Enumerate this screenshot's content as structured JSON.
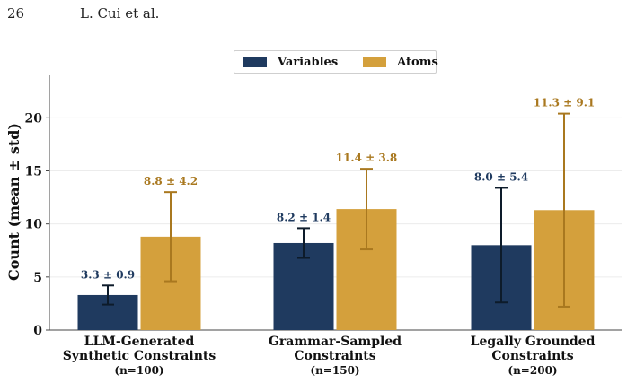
{
  "page": {
    "number": "26",
    "running_head": "L. Cui et al."
  },
  "chart_data": {
    "type": "bar",
    "categories": [
      {
        "lines": [
          "LLM-Generated",
          "Synthetic Constraints"
        ],
        "n": "(n=100)"
      },
      {
        "lines": [
          "Grammar-Sampled",
          "Constraints"
        ],
        "n": "(n=150)"
      },
      {
        "lines": [
          "Legally Grounded",
          "Constraints"
        ],
        "n": "(n=200)"
      }
    ],
    "series": [
      {
        "name": "Variables",
        "color": "#1f3a5f",
        "label_color": "#1f3a5f",
        "values": [
          3.3,
          8.2,
          8.0
        ],
        "std": [
          0.9,
          1.4,
          5.4
        ],
        "labels": [
          "3.3 ± 0.9",
          "8.2 ± 1.4",
          "8.0 ± 5.4"
        ]
      },
      {
        "name": "Atoms",
        "color": "#d4a03c",
        "label_color": "#a9781f",
        "values": [
          8.8,
          11.4,
          11.3
        ],
        "std": [
          4.2,
          3.8,
          9.1
        ],
        "labels": [
          "8.8 ± 4.2",
          "11.4 ± 3.8",
          "11.3 ± 9.1"
        ]
      }
    ],
    "ylabel": "Count (mean ± std)",
    "xlabel": "",
    "ylim": [
      0,
      24
    ],
    "yticks": [
      0,
      5,
      10,
      15,
      20
    ],
    "grid": true,
    "legend_position": "top-center",
    "errorbar_color": "#0d1b2a"
  }
}
